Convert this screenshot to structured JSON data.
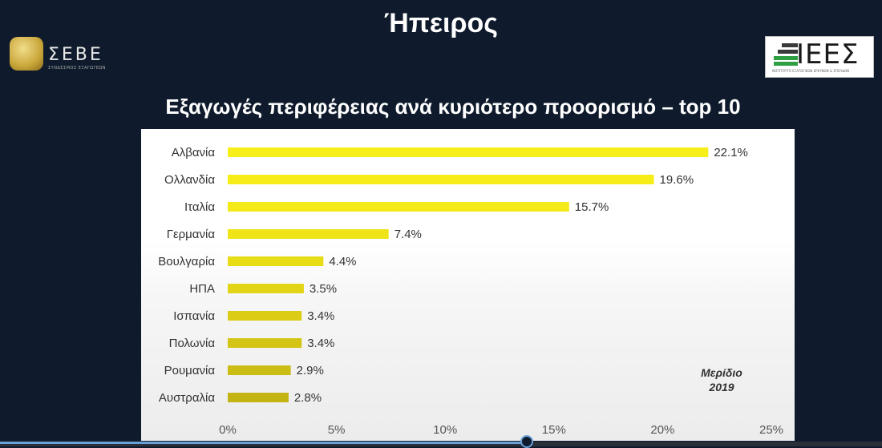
{
  "slide": {
    "title": "Ήπειρος",
    "left_logo": {
      "text": "ΣΕΒΕ",
      "subtext": "ΣΥΝΔΕΣΜΟΣ ΕΞΑΓΩΓΕΩΝ"
    },
    "right_logo": {
      "text": "ΙΕΕΣ",
      "subtext": "ΙΝΣΤΙΤΟΥΤΟ ΕΞΑΓΩΓΙΚΩΝ ΕΡΕΥΝΩΝ & ΣΠΟΥΔΩΝ"
    }
  },
  "chart_data": {
    "type": "bar",
    "orientation": "horizontal",
    "title": "Εξαγωγές περιφέρειας ανά κυριότερο προορισμό – top 10",
    "categories": [
      "Αλβανία",
      "Ολλανδία",
      "Ιταλία",
      "Γερμανία",
      "Βουλγαρία",
      "ΗΠΑ",
      "Ισπανία",
      "Πολωνία",
      "Ρουμανία",
      "Αυστραλία"
    ],
    "values": [
      22.1,
      19.6,
      15.7,
      7.4,
      4.4,
      3.5,
      3.4,
      3.4,
      2.9,
      2.8
    ],
    "value_labels": [
      "22.1%",
      "19.6%",
      "15.7%",
      "7.4%",
      "4.4%",
      "3.5%",
      "3.4%",
      "3.4%",
      "2.9%",
      "2.8%"
    ],
    "xlim": [
      0,
      25
    ],
    "xticks": [
      "0%",
      "5%",
      "10%",
      "15%",
      "20%",
      "25%"
    ],
    "xlabel": "",
    "ylabel": "",
    "grid": false,
    "annotation": {
      "line1": "Μερίδιο",
      "line2": "2019"
    },
    "colors": {
      "bar": "#f7ef1a",
      "panel": "#ffffff"
    }
  }
}
